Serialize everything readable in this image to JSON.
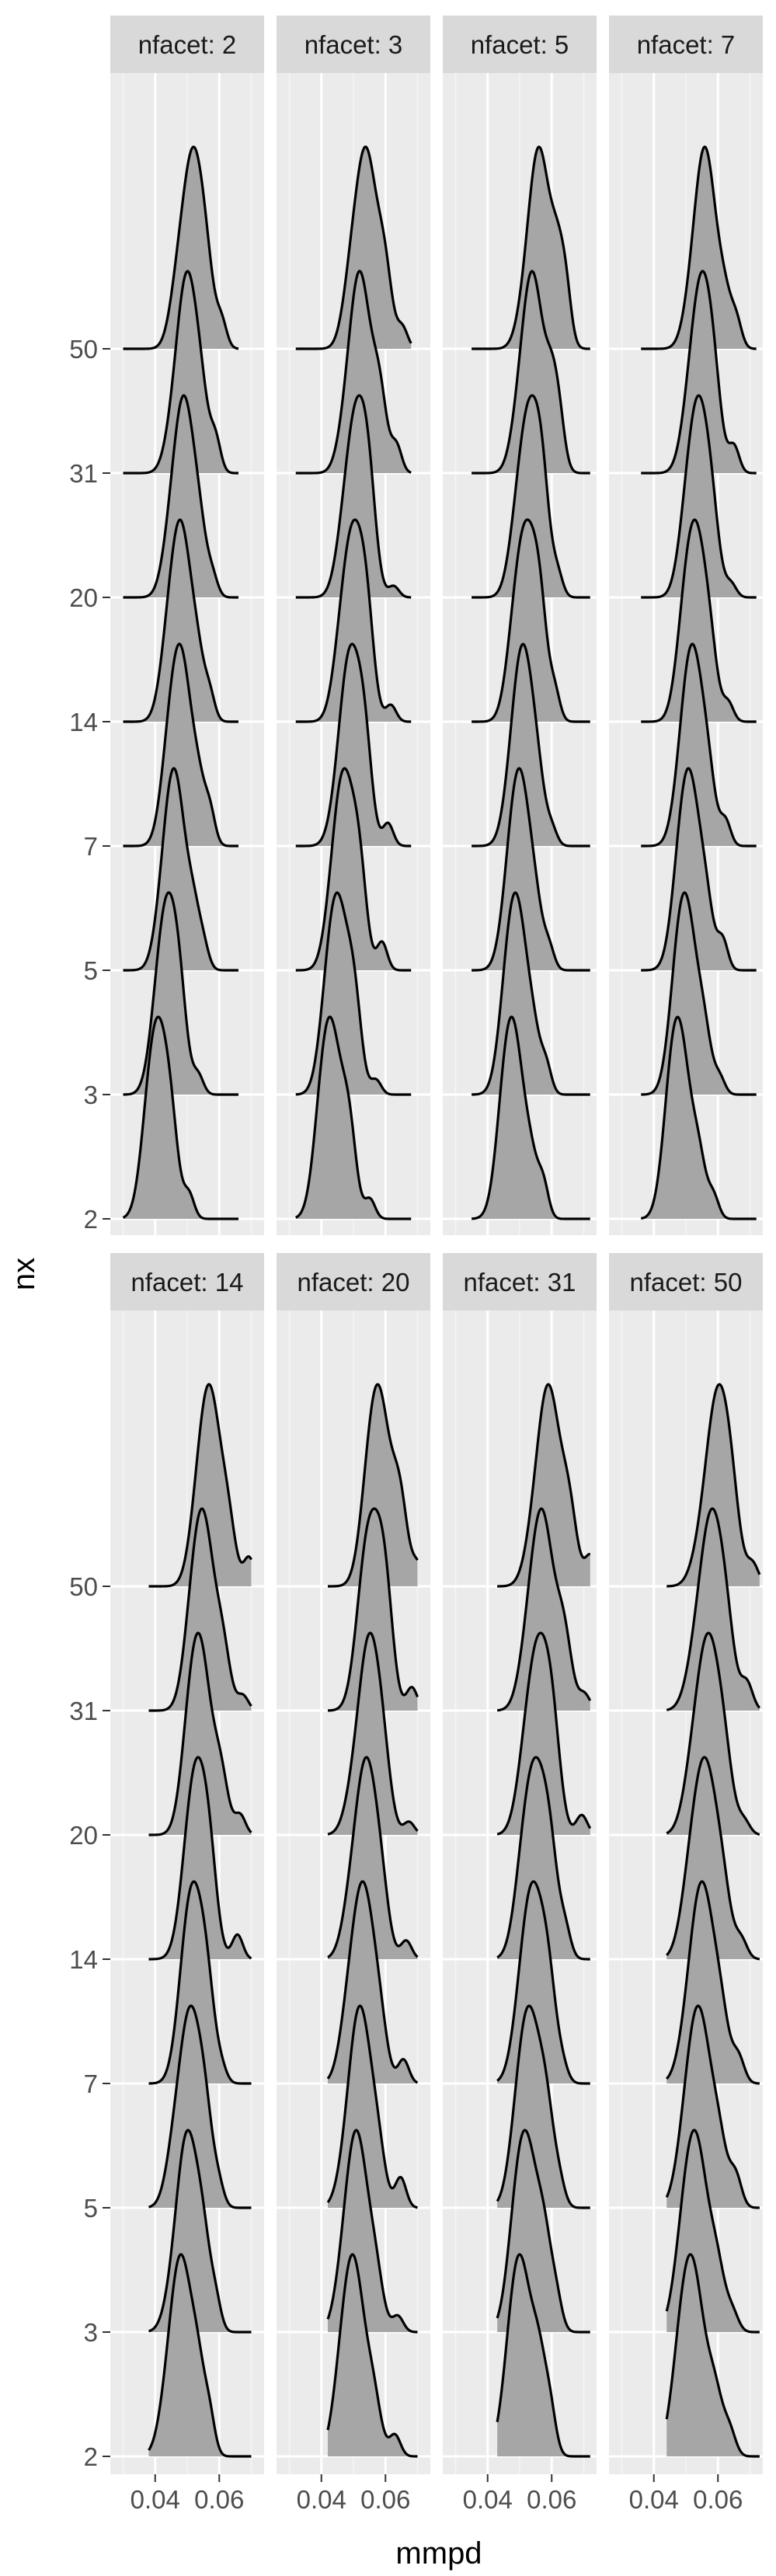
{
  "chart_data": {
    "type": "ridgeline",
    "xlabel": "mmpd",
    "ylabel": "nx",
    "facet_label_prefix": "nfacet: ",
    "x_ticks": [
      "0.04",
      "0.06"
    ],
    "x_tick_values": [
      0.04,
      0.06
    ],
    "xlim": [
      0.026,
      0.074
    ],
    "ridge_levels": [
      "2",
      "3",
      "5",
      "7",
      "14",
      "20",
      "31",
      "50"
    ],
    "grid": true,
    "panel_background": "#ebebeb",
    "strip_background": "#d9d9d9",
    "fill_color": "#a6a6a6",
    "line_color": "#000000",
    "facets": [
      {
        "nfacet": "2",
        "peak": [
          0.041,
          0.044,
          0.046,
          0.048,
          0.048,
          0.049,
          0.05,
          0.052
        ],
        "extent": [
          0.03,
          0.066
        ]
      },
      {
        "nfacet": "3",
        "peak": [
          0.043,
          0.045,
          0.047,
          0.049,
          0.05,
          0.051,
          0.052,
          0.054
        ],
        "extent": [
          0.032,
          0.068
        ]
      },
      {
        "nfacet": "5",
        "peak": [
          0.048,
          0.049,
          0.05,
          0.051,
          0.052,
          0.053,
          0.054,
          0.056
        ],
        "extent": [
          0.035,
          0.072
        ]
      },
      {
        "nfacet": "7",
        "peak": [
          0.048,
          0.05,
          0.051,
          0.052,
          0.053,
          0.054,
          0.055,
          0.056
        ],
        "extent": [
          0.036,
          0.072
        ]
      },
      {
        "nfacet": "14",
        "peak": [
          0.048,
          0.05,
          0.051,
          0.052,
          0.053,
          0.054,
          0.055,
          0.057
        ],
        "extent": [
          0.038,
          0.07
        ]
      },
      {
        "nfacet": "20",
        "peak": [
          0.05,
          0.051,
          0.052,
          0.053,
          0.054,
          0.055,
          0.056,
          0.058
        ],
        "extent": [
          0.042,
          0.07
        ]
      },
      {
        "nfacet": "31",
        "peak": [
          0.05,
          0.052,
          0.053,
          0.054,
          0.055,
          0.056,
          0.057,
          0.059
        ],
        "extent": [
          0.043,
          0.072
        ]
      },
      {
        "nfacet": "50",
        "peak": [
          0.052,
          0.053,
          0.054,
          0.055,
          0.056,
          0.057,
          0.058,
          0.06
        ],
        "extent": [
          0.044,
          0.073
        ]
      }
    ]
  }
}
